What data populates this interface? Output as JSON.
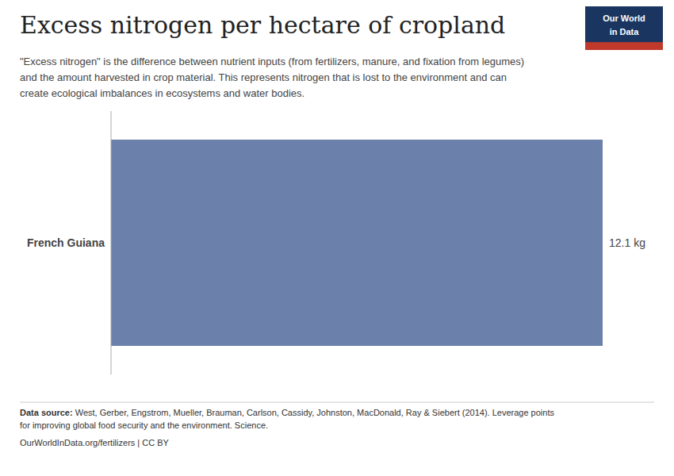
{
  "chart_data": {
    "type": "bar",
    "orientation": "horizontal",
    "title": "Excess nitrogen per hectare of cropland",
    "subtitle": "\"Excess nitrogen\" is the difference between nutrient inputs (from fertilizers, manure, and fixation from legumes)\nand the amount harvested in crop material. This represents nitrogen that is lost to the environment and can\ncreate ecological imbalances in ecosystems and water bodies.",
    "categories": [
      "French Guiana"
    ],
    "values": [
      12.1
    ],
    "value_labels": [
      "12.1 kg"
    ],
    "data_labels": true,
    "color": "#6b80aa",
    "xlim": [
      0,
      12.1
    ],
    "xticks": [],
    "tick_labels": "y",
    "annotations": [
      "Data source:",
      " West, Gerber, Engstrom, Mueller, Brauman, Carlson, Cassidy, Johnston, MacDonald, Ray & Siebert (2014). Leverage points\nfor improving global food security and the environment. Science.",
      "OurWorldInData.org/fertilizers | CC BY",
      "Our World",
      "in Data"
    ]
  }
}
